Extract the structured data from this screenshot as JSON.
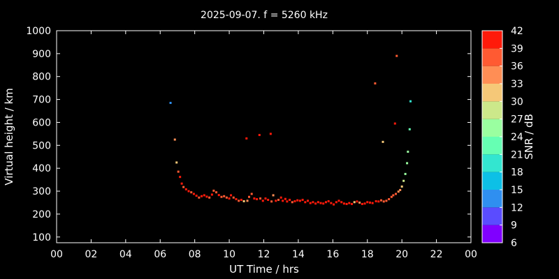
{
  "chart_data": {
    "type": "scatter",
    "title": "2025-09-07. f = 5260 kHz",
    "xlabel": "UT Time / hrs",
    "ylabel": "Virtual height / km",
    "colorbar_label": "SNR / dB",
    "xlim": [
      0,
      24
    ],
    "ylim": [
      75,
      1000
    ],
    "x_ticks": [
      "00",
      "02",
      "04",
      "06",
      "08",
      "10",
      "12",
      "14",
      "16",
      "18",
      "20",
      "22",
      "00"
    ],
    "y_ticks": [
      100,
      200,
      300,
      400,
      500,
      600,
      700,
      800,
      900,
      1000
    ],
    "colorbar": {
      "ticks": [
        6,
        9,
        12,
        15,
        18,
        21,
        24,
        27,
        30,
        33,
        36,
        39,
        42
      ],
      "colors": [
        "#8000ff",
        "#5a4cff",
        "#2f8ff0",
        "#0dc0e6",
        "#33e6d0",
        "#66ffb3",
        "#9affa0",
        "#cce88a",
        "#f5c878",
        "#ff8e55",
        "#ff5a32",
        "#ff1a0a"
      ]
    },
    "points": [
      [
        6.6,
        685,
        12
      ],
      [
        6.85,
        525,
        33
      ],
      [
        6.95,
        425,
        30
      ],
      [
        7.05,
        385,
        36
      ],
      [
        7.15,
        362,
        39
      ],
      [
        7.25,
        333,
        39
      ],
      [
        7.35,
        318,
        36
      ],
      [
        7.5,
        308,
        39
      ],
      [
        7.65,
        300,
        39
      ],
      [
        7.8,
        295,
        36
      ],
      [
        7.95,
        288,
        39
      ],
      [
        8.1,
        280,
        39
      ],
      [
        8.25,
        272,
        36
      ],
      [
        8.4,
        278,
        39
      ],
      [
        8.55,
        282,
        39
      ],
      [
        8.7,
        276,
        39
      ],
      [
        8.85,
        272,
        36
      ],
      [
        9.0,
        285,
        39
      ],
      [
        9.1,
        302,
        36
      ],
      [
        9.25,
        295,
        36
      ],
      [
        9.4,
        283,
        39
      ],
      [
        9.55,
        275,
        36
      ],
      [
        9.7,
        278,
        36
      ],
      [
        9.85,
        272,
        36
      ],
      [
        10.0,
        268,
        39
      ],
      [
        10.1,
        282,
        39
      ],
      [
        10.25,
        272,
        36
      ],
      [
        10.4,
        265,
        39
      ],
      [
        10.55,
        258,
        36
      ],
      [
        10.7,
        262,
        39
      ],
      [
        10.85,
        256,
        30
      ],
      [
        11.0,
        530,
        39
      ],
      [
        11.05,
        258,
        33
      ],
      [
        11.15,
        275,
        36
      ],
      [
        11.3,
        288,
        36
      ],
      [
        11.45,
        268,
        39
      ],
      [
        11.6,
        265,
        39
      ],
      [
        11.75,
        545,
        39
      ],
      [
        11.8,
        268,
        36
      ],
      [
        11.95,
        258,
        39
      ],
      [
        12.1,
        268,
        39
      ],
      [
        12.25,
        262,
        39
      ],
      [
        12.4,
        550,
        39
      ],
      [
        12.45,
        255,
        36
      ],
      [
        12.55,
        282,
        33
      ],
      [
        12.7,
        258,
        39
      ],
      [
        12.85,
        262,
        36
      ],
      [
        13.0,
        272,
        39
      ],
      [
        13.1,
        258,
        39
      ],
      [
        13.25,
        266,
        39
      ],
      [
        13.35,
        255,
        39
      ],
      [
        13.5,
        262,
        39
      ],
      [
        13.65,
        252,
        36
      ],
      [
        13.8,
        256,
        39
      ],
      [
        13.95,
        260,
        39
      ],
      [
        14.1,
        258,
        39
      ],
      [
        14.25,
        262,
        39
      ],
      [
        14.4,
        252,
        39
      ],
      [
        14.55,
        258,
        39
      ],
      [
        14.7,
        248,
        39
      ],
      [
        14.85,
        252,
        39
      ],
      [
        15.0,
        246,
        39
      ],
      [
        15.15,
        252,
        39
      ],
      [
        15.3,
        248,
        39
      ],
      [
        15.45,
        246,
        39
      ],
      [
        15.6,
        252,
        39
      ],
      [
        15.75,
        256,
        39
      ],
      [
        15.9,
        248,
        39
      ],
      [
        16.05,
        242,
        39
      ],
      [
        16.2,
        252,
        39
      ],
      [
        16.35,
        258,
        39
      ],
      [
        16.5,
        252,
        39
      ],
      [
        16.65,
        246,
        39
      ],
      [
        16.8,
        244,
        39
      ],
      [
        16.95,
        248,
        39
      ],
      [
        17.1,
        244,
        39
      ],
      [
        17.25,
        252,
        30
      ],
      [
        17.4,
        255,
        39
      ],
      [
        17.55,
        250,
        33
      ],
      [
        17.7,
        244,
        39
      ],
      [
        17.85,
        246,
        39
      ],
      [
        18.0,
        252,
        39
      ],
      [
        18.15,
        250,
        39
      ],
      [
        18.3,
        248,
        39
      ],
      [
        18.45,
        770,
        36
      ],
      [
        18.5,
        256,
        39
      ],
      [
        18.65,
        255,
        39
      ],
      [
        18.8,
        260,
        36
      ],
      [
        18.9,
        515,
        30
      ],
      [
        18.95,
        255,
        36
      ],
      [
        19.1,
        258,
        36
      ],
      [
        19.25,
        265,
        36
      ],
      [
        19.4,
        275,
        36
      ],
      [
        19.5,
        282,
        36
      ],
      [
        19.6,
        595,
        42
      ],
      [
        19.65,
        288,
        36
      ],
      [
        19.7,
        890,
        36
      ],
      [
        19.8,
        298,
        33
      ],
      [
        19.9,
        305,
        33
      ],
      [
        20.0,
        320,
        30
      ],
      [
        20.1,
        345,
        27
      ],
      [
        20.2,
        375,
        24
      ],
      [
        20.3,
        422,
        24
      ],
      [
        20.35,
        472,
        24
      ],
      [
        20.45,
        570,
        21
      ],
      [
        20.5,
        692,
        18
      ]
    ]
  }
}
